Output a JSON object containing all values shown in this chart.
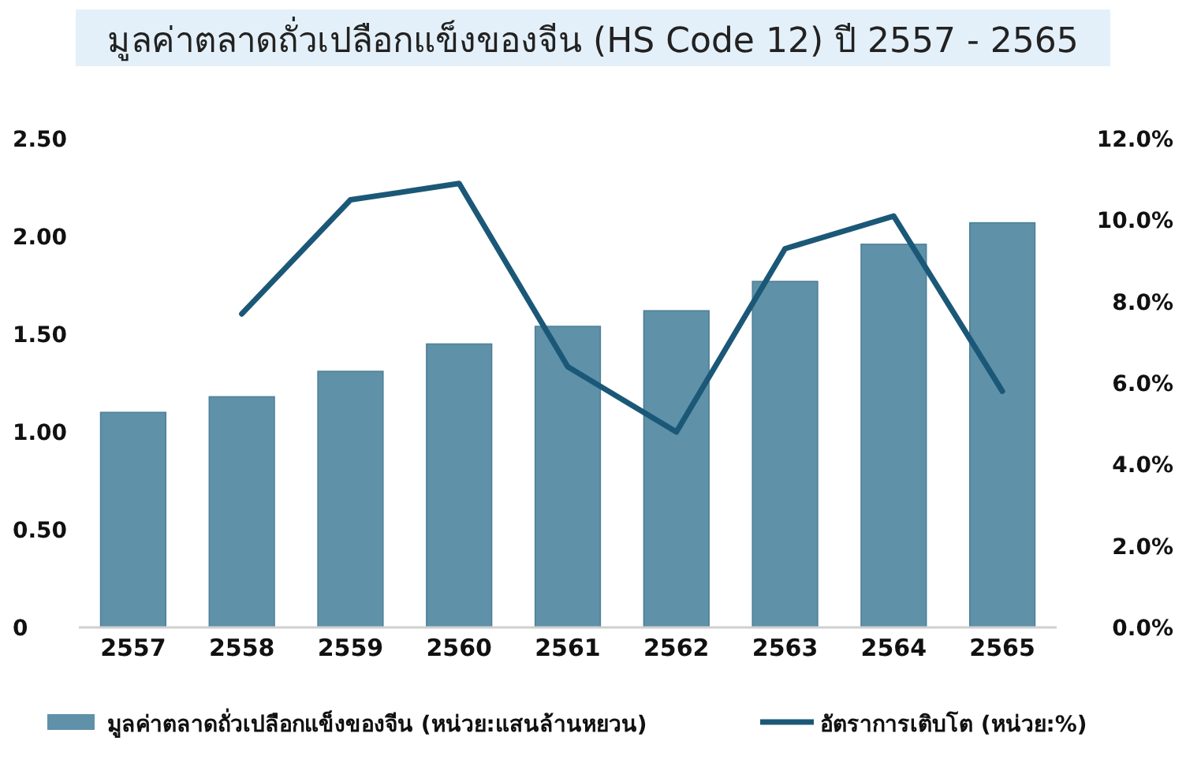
{
  "chart_data": {
    "type": "bar",
    "title": "มูลค่าตลาดถั่วเปลือกแข็งของจีน (HS Code 12) ปี 2557  - 2565",
    "categories": [
      "2557",
      "2558",
      "2559",
      "2560",
      "2561",
      "2562",
      "2563",
      "2564",
      "2565"
    ],
    "series": [
      {
        "name": "มูลค่าตลาดถั่วเปลือกแข็งของจีน (หน่วย:แสนล้านหยวน)",
        "color": "#5f91a8",
        "values": [
          1.1,
          1.18,
          1.31,
          1.45,
          1.54,
          1.62,
          1.77,
          1.96,
          2.07
        ]
      },
      {
        "name": "อัตราการเติบโต (หน่วย:%)",
        "type": "line",
        "axis": "y2",
        "color": "#1b5877",
        "values": [
          null,
          7.7,
          10.5,
          10.9,
          6.4,
          4.8,
          9.3,
          10.1,
          5.8
        ]
      }
    ],
    "ylim": [
      0,
      2.5
    ],
    "yticks": [
      {
        "value": 0,
        "label": "0"
      },
      {
        "value": 0.5,
        "label": "0.50"
      },
      {
        "value": 1,
        "label": "1.00"
      },
      {
        "value": 1.5,
        "label": "1.50"
      },
      {
        "value": 2,
        "label": "2.00"
      },
      {
        "value": 2.5,
        "label": "2.50"
      }
    ],
    "y2lim": [
      0,
      12
    ],
    "y2ticks": [
      {
        "value": 0,
        "label": "0.0%"
      },
      {
        "value": 2,
        "label": "2.0%"
      },
      {
        "value": 4,
        "label": "4.0%"
      },
      {
        "value": 6,
        "label": "6.0%"
      },
      {
        "value": 8,
        "label": "8.0%"
      },
      {
        "value": 10,
        "label": "10.0%"
      },
      {
        "value": 12,
        "label": "12.0%"
      }
    ],
    "grid": false,
    "legend": "bottom"
  }
}
